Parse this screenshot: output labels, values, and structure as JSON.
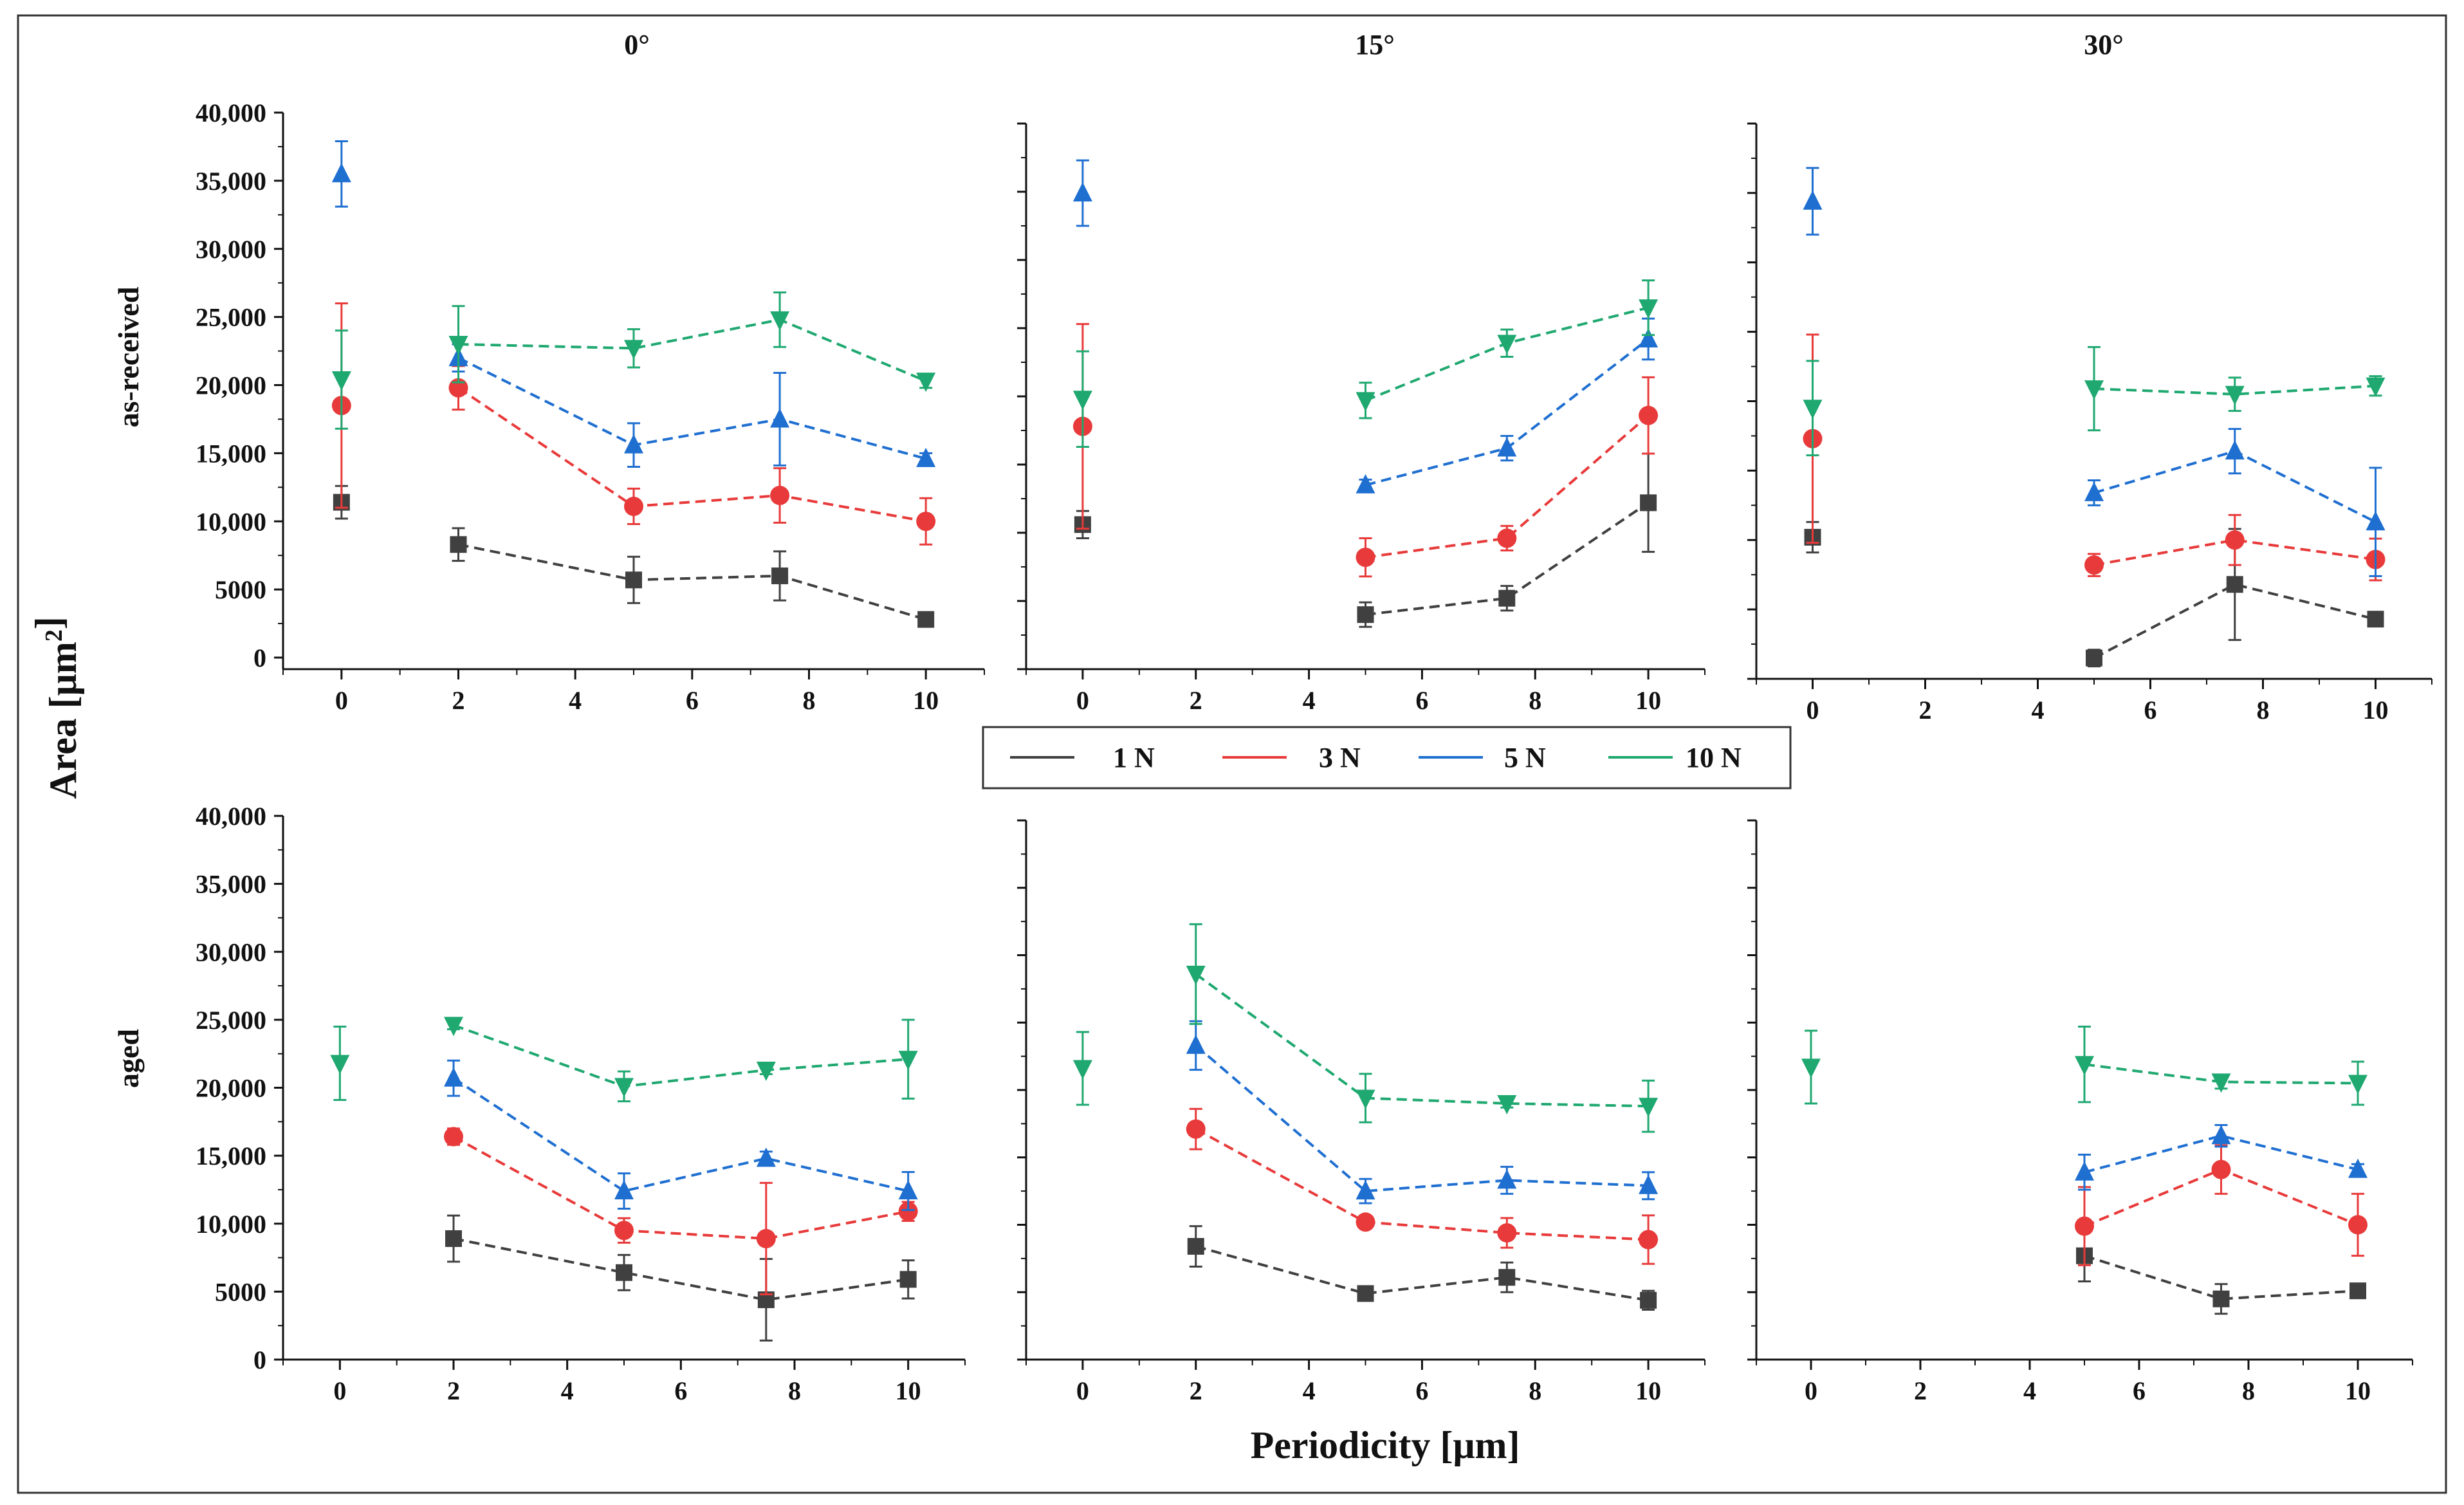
{
  "figure": {
    "panel_titles": [
      "0°",
      "15°",
      "30°"
    ],
    "row_labels": [
      "as-received",
      "aged"
    ],
    "y_axis_label": "Area [μm²]",
    "x_axis_label": "Periodicity [μm]",
    "y_tick_labels": [
      "0",
      "5000",
      "10,000",
      "15,000",
      "20,000",
      "25,000",
      "30,000",
      "35,000",
      "40,000"
    ],
    "x_tick_labels": [
      "0",
      "2",
      "4",
      "6",
      "8",
      "10"
    ]
  },
  "legend": [
    {
      "name": "1 N",
      "color": "#404040"
    },
    {
      "name": "3 N",
      "color": "#e83a3a"
    },
    {
      "name": "5 N",
      "color": "#1f6fd1"
    },
    {
      "name": "10 N",
      "color": "#1fa870"
    }
  ],
  "chart_data": [
    {
      "type": "line",
      "title": "0°",
      "row": "as-received",
      "xlim": [
        -1,
        11
      ],
      "ylim": [
        0,
        40000
      ],
      "grid": false,
      "legend_position": "bottom-center",
      "series": [
        {
          "name": "1 N",
          "marker": "square",
          "x": [
            0,
            2,
            5,
            7.5,
            10
          ],
          "values": [
            11400,
            8300,
            5700,
            6000,
            2800
          ],
          "errors": [
            1200,
            1200,
            1700,
            1800,
            300
          ]
        },
        {
          "name": "3 N",
          "marker": "circle",
          "x": [
            0,
            2,
            5,
            7.5,
            10
          ],
          "values": [
            18500,
            19800,
            11100,
            11900,
            10000
          ],
          "errors": [
            7500,
            1600,
            1300,
            2000,
            1700
          ]
        },
        {
          "name": "5 N",
          "marker": "triangle-up",
          "x": [
            0,
            2,
            5,
            7.5,
            10
          ],
          "values": [
            35500,
            22000,
            15600,
            17500,
            14600
          ],
          "errors": [
            2400,
            1000,
            1600,
            3400,
            400
          ]
        },
        {
          "name": "10 N",
          "marker": "triangle-down",
          "x": [
            0,
            2,
            5,
            7.5,
            10
          ],
          "values": [
            20400,
            23000,
            22700,
            24800,
            20300
          ],
          "errors": [
            3600,
            2800,
            1400,
            2000,
            500
          ]
        }
      ]
    },
    {
      "type": "line",
      "title": "15°",
      "row": "as-received",
      "xlim": [
        -1,
        11
      ],
      "ylim": [
        0,
        40000
      ],
      "grid": false,
      "series": [
        {
          "name": "1 N",
          "marker": "square",
          "x": [
            0,
            5,
            7.5,
            10
          ],
          "values": [
            10600,
            4000,
            5200,
            12200
          ],
          "errors": [
            1000,
            900,
            900,
            3600
          ]
        },
        {
          "name": "3 N",
          "marker": "circle",
          "x": [
            0,
            5,
            7.5,
            10
          ],
          "values": [
            17800,
            8200,
            9600,
            18600
          ],
          "errors": [
            7500,
            1400,
            900,
            2800
          ]
        },
        {
          "name": "5 N",
          "marker": "triangle-up",
          "x": [
            0,
            5,
            7.5,
            10
          ],
          "values": [
            34900,
            13500,
            16200,
            24200
          ],
          "errors": [
            2400,
            400,
            900,
            1500
          ]
        },
        {
          "name": "10 N",
          "marker": "triangle-down",
          "x": [
            0,
            5,
            7.5,
            10
          ],
          "values": [
            19800,
            19700,
            23900,
            26500
          ],
          "errors": [
            3500,
            1300,
            1000,
            2000
          ]
        }
      ]
    },
    {
      "type": "line",
      "title": "30°",
      "row": "as-received",
      "xlim": [
        -1,
        11
      ],
      "ylim": [
        0,
        40000
      ],
      "grid": false,
      "series": [
        {
          "name": "1 N",
          "marker": "square",
          "x": [
            0,
            5,
            7.5,
            10
          ],
          "values": [
            10200,
            1500,
            6800,
            4300
          ],
          "errors": [
            1100,
            600,
            4000,
            200
          ]
        },
        {
          "name": "3 N",
          "marker": "circle",
          "x": [
            0,
            5,
            7.5,
            10
          ],
          "values": [
            17300,
            8200,
            10000,
            8600
          ],
          "errors": [
            7500,
            800,
            1800,
            1500
          ]
        },
        {
          "name": "5 N",
          "marker": "triangle-up",
          "x": [
            0,
            5,
            7.5,
            10
          ],
          "values": [
            34400,
            13400,
            16400,
            11300
          ],
          "errors": [
            2400,
            900,
            1600,
            3900
          ]
        },
        {
          "name": "10 N",
          "marker": "triangle-down",
          "x": [
            0,
            5,
            7.5,
            10
          ],
          "values": [
            19500,
            20900,
            20500,
            21100
          ],
          "errors": [
            3400,
            3000,
            1200,
            700
          ]
        }
      ]
    },
    {
      "type": "line",
      "title": "",
      "row": "aged",
      "xlim": [
        -1,
        11
      ],
      "ylim": [
        0,
        40000
      ],
      "grid": false,
      "series": [
        {
          "name": "1 N",
          "marker": "square",
          "x": [
            2,
            5,
            7.5,
            10
          ],
          "values": [
            8900,
            6400,
            4400,
            5900
          ],
          "errors": [
            1700,
            1300,
            3000,
            1400
          ]
        },
        {
          "name": "3 N",
          "marker": "circle",
          "x": [
            2,
            5,
            7.5,
            10
          ],
          "values": [
            16400,
            9500,
            8900,
            10900
          ],
          "errors": [
            600,
            900,
            4100,
            700
          ]
        },
        {
          "name": "5 N",
          "marker": "triangle-up",
          "x": [
            2,
            5,
            7.5,
            10
          ],
          "values": [
            20700,
            12400,
            14800,
            12400
          ],
          "errors": [
            1300,
            1300,
            500,
            1400
          ]
        },
        {
          "name": "10 N",
          "marker": "triangle-down",
          "x": [
            0,
            2,
            5,
            7.5,
            10
          ],
          "values": [
            21800,
            24600,
            20100,
            21300,
            22100
          ],
          "errors": [
            2700,
            300,
            1100,
            300,
            2900
          ]
        }
      ]
    },
    {
      "type": "line",
      "title": "",
      "row": "aged",
      "xlim": [
        -1,
        11
      ],
      "ylim": [
        0,
        40000
      ],
      "grid": false,
      "series": [
        {
          "name": "1 N",
          "marker": "square",
          "x": [
            2,
            5,
            7.5,
            10
          ],
          "values": [
            8400,
            4900,
            6100,
            4400
          ],
          "errors": [
            1500,
            300,
            1100,
            700
          ]
        },
        {
          "name": "3 N",
          "marker": "circle",
          "x": [
            2,
            5,
            7.5,
            10
          ],
          "values": [
            17100,
            10200,
            9400,
            8900
          ],
          "errors": [
            1500,
            300,
            1100,
            1800
          ]
        },
        {
          "name": "5 N",
          "marker": "triangle-up",
          "x": [
            2,
            5,
            7.5,
            10
          ],
          "values": [
            23300,
            12500,
            13300,
            12900
          ],
          "errors": [
            1800,
            900,
            1000,
            1000
          ]
        },
        {
          "name": "10 N",
          "marker": "triangle-down",
          "x": [
            0,
            2,
            5,
            7.5,
            10
          ],
          "values": [
            21600,
            28600,
            19400,
            19000,
            18800
          ],
          "errors": [
            2700,
            3700,
            1800,
            300,
            1900
          ]
        }
      ]
    },
    {
      "type": "line",
      "title": "",
      "row": "aged",
      "xlim": [
        -1,
        11
      ],
      "ylim": [
        0,
        40000
      ],
      "grid": false,
      "series": [
        {
          "name": "1 N",
          "marker": "square",
          "x": [
            5,
            7.5,
            10
          ],
          "values": [
            7700,
            4500,
            5100
          ],
          "errors": [
            1900,
            1100,
            300
          ]
        },
        {
          "name": "3 N",
          "marker": "circle",
          "x": [
            5,
            7.5,
            10
          ],
          "values": [
            9900,
            14100,
            10000
          ],
          "errors": [
            2900,
            1800,
            2300
          ]
        },
        {
          "name": "5 N",
          "marker": "triangle-up",
          "x": [
            5,
            7.5,
            10
          ],
          "values": [
            13900,
            16600,
            14100
          ],
          "errors": [
            1300,
            800,
            400
          ]
        },
        {
          "name": "10 N",
          "marker": "triangle-down",
          "x": [
            0,
            5,
            7.5,
            10
          ],
          "values": [
            21700,
            21900,
            20600,
            20500
          ],
          "errors": [
            2700,
            2800,
            500,
            1600
          ]
        }
      ]
    }
  ]
}
